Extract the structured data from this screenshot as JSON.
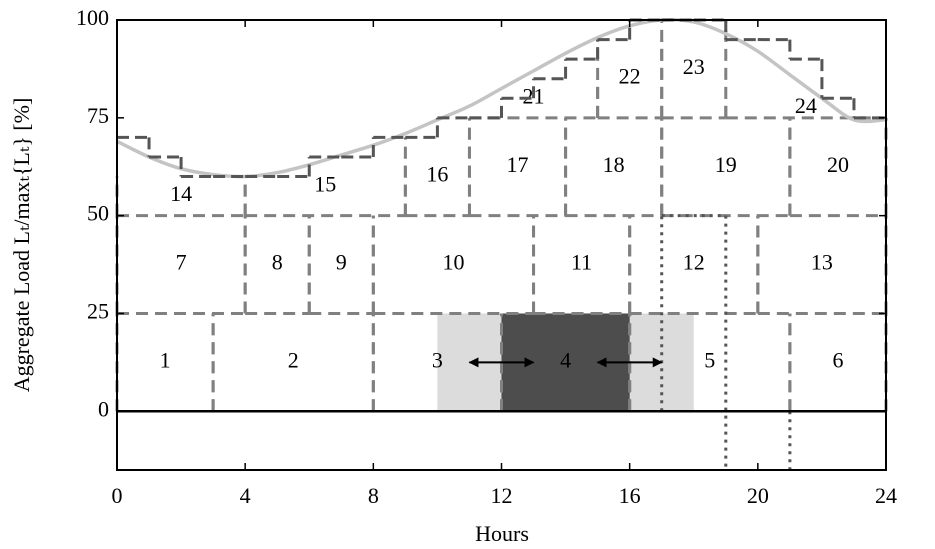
{
  "chart_data": {
    "type": "line",
    "xlabel": "Hours",
    "ylabel": "Aggregate Load Lₜ/maxₜ{Lₜ} [%]",
    "xlim": [
      0,
      24
    ],
    "ylim": [
      -15,
      100
    ],
    "xticks": [
      0,
      4,
      8,
      12,
      16,
      20,
      24
    ],
    "yticks": [
      0,
      25,
      50,
      75,
      100
    ],
    "series": [
      {
        "style": "smooth",
        "color": "#c4c4c4",
        "x": [
          0,
          1,
          2,
          3,
          4,
          5,
          6,
          7,
          8,
          9,
          10,
          11,
          12,
          13,
          14,
          15,
          16,
          17,
          18,
          19,
          20,
          21,
          22,
          23,
          24
        ],
        "values": [
          69,
          65,
          62,
          60.5,
          60,
          61,
          63,
          65.5,
          68,
          71,
          74.5,
          78,
          82.5,
          87,
          91.5,
          95.5,
          98.5,
          100,
          99.5,
          96.5,
          92,
          86,
          80,
          74.5,
          74.5
        ]
      },
      {
        "style": "step",
        "color": "#555555",
        "x": [
          0,
          1,
          2,
          3,
          4,
          5,
          6,
          7,
          8,
          9,
          10,
          11,
          12,
          13,
          14,
          15,
          16,
          17,
          18,
          19,
          20,
          21,
          22,
          23
        ],
        "values": [
          70,
          65,
          60,
          60,
          60,
          60,
          65,
          65,
          70,
          70,
          75,
          75,
          80,
          85,
          90,
          95,
          100,
          100,
          100,
          95,
          95,
          90,
          80,
          75
        ]
      }
    ],
    "shaded": [
      {
        "x": [
          10,
          18
        ],
        "y": [
          0,
          25
        ],
        "color": "#dcdcdc"
      },
      {
        "x": [
          12,
          16
        ],
        "y": [
          0,
          25
        ],
        "color": "#4d4d4d"
      }
    ],
    "blocks": [
      {
        "label": "1",
        "x": [
          0,
          3
        ],
        "y": [
          0,
          25
        ]
      },
      {
        "label": "2",
        "x": [
          3,
          8
        ],
        "y": [
          0,
          25
        ]
      },
      {
        "label": "3",
        "x": [
          8,
          12
        ],
        "y": [
          0,
          25
        ]
      },
      {
        "label": "4",
        "x": [
          12,
          16
        ],
        "y": [
          0,
          25
        ]
      },
      {
        "label": "5",
        "x": [
          16,
          21
        ],
        "y": [
          0,
          25
        ]
      },
      {
        "label": "6",
        "x": [
          21,
          24
        ],
        "y": [
          0,
          25
        ]
      },
      {
        "label": "7",
        "x": [
          0,
          4
        ],
        "y": [
          25,
          50
        ]
      },
      {
        "label": "8",
        "x": [
          4,
          6
        ],
        "y": [
          25,
          50
        ]
      },
      {
        "label": "9",
        "x": [
          6,
          8
        ],
        "y": [
          25,
          50
        ]
      },
      {
        "label": "10",
        "x": [
          8,
          13
        ],
        "y": [
          25,
          50
        ]
      },
      {
        "label": "11",
        "x": [
          13,
          16
        ],
        "y": [
          25,
          50
        ]
      },
      {
        "label": "12",
        "x": [
          16,
          20
        ],
        "y": [
          25,
          50
        ]
      },
      {
        "label": "13",
        "x": [
          20,
          24
        ],
        "y": [
          25,
          50
        ]
      },
      {
        "label": "14",
        "x": [
          0,
          4
        ],
        "y": [
          50,
          60
        ]
      },
      {
        "label": "15",
        "x": [
          4,
          9
        ],
        "y": [
          50,
          65
        ]
      },
      {
        "label": "16",
        "x": [
          9,
          11
        ],
        "y": [
          50,
          70
        ]
      },
      {
        "label": "17",
        "x": [
          11,
          14
        ],
        "y": [
          50,
          75
        ]
      },
      {
        "label": "18",
        "x": [
          14,
          17
        ],
        "y": [
          50,
          75
        ]
      },
      {
        "label": "19",
        "x": [
          17,
          21
        ],
        "y": [
          50,
          75
        ]
      },
      {
        "label": "20",
        "x": [
          21,
          24
        ],
        "y": [
          50,
          75
        ]
      },
      {
        "label": "21",
        "x": [
          11,
          15
        ],
        "y": [
          75,
          85
        ]
      },
      {
        "label": "22",
        "x": [
          15,
          17
        ],
        "y": [
          75,
          95
        ]
      },
      {
        "label": "23",
        "x": [
          17,
          19
        ],
        "y": [
          75,
          100
        ]
      },
      {
        "label": "24",
        "x": [
          19,
          24
        ],
        "y": [
          75,
          80
        ]
      }
    ],
    "dotted_lines": [
      {
        "x": [
          17,
          17
        ],
        "y": [
          0,
          50
        ]
      },
      {
        "x": [
          17,
          19
        ],
        "y": [
          50,
          50
        ]
      },
      {
        "x": [
          19,
          19
        ],
        "y": [
          50,
          -15
        ]
      },
      {
        "x": [
          21,
          21
        ],
        "y": [
          0,
          -15
        ]
      }
    ],
    "arrows": [
      {
        "x": [
          11,
          13
        ],
        "y": 12.5
      },
      {
        "x": [
          15,
          17
        ],
        "y": 12.5
      }
    ]
  }
}
